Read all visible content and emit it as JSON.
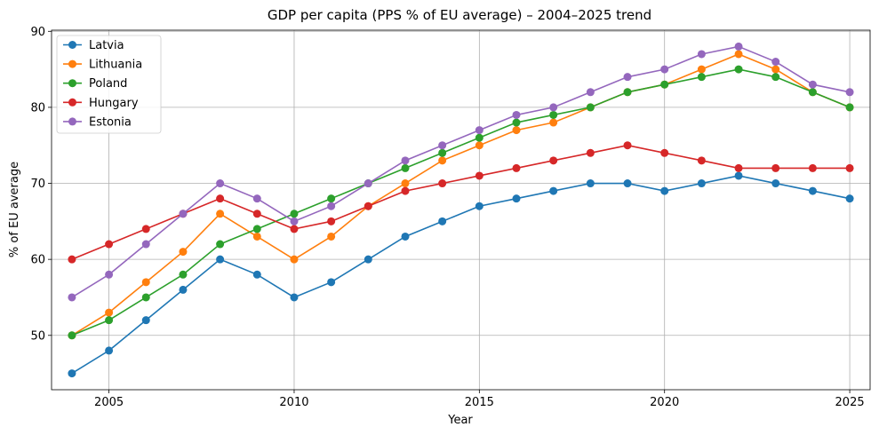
{
  "chart_data": {
    "type": "line",
    "title": "GDP per capita (PPS % of EU average) – 2004–2025 trend",
    "xlabel": "Year",
    "ylabel": "% of EU average",
    "x": [
      2004,
      2005,
      2006,
      2007,
      2008,
      2009,
      2010,
      2011,
      2012,
      2013,
      2014,
      2015,
      2016,
      2017,
      2018,
      2019,
      2020,
      2021,
      2022,
      2023,
      2024,
      2025
    ],
    "xlim": [
      2003.45,
      2025.55
    ],
    "ylim": [
      42.85,
      90.15
    ],
    "xticks": [
      2005,
      2010,
      2015,
      2020,
      2025
    ],
    "yticks": [
      50,
      60,
      70,
      80,
      90
    ],
    "grid": true,
    "legend_position": "top-left",
    "series": [
      {
        "name": "Latvia",
        "color": "#1f77b4",
        "values": [
          45,
          48,
          52,
          56,
          60,
          58,
          55,
          57,
          60,
          63,
          65,
          67,
          68,
          69,
          70,
          70,
          69,
          70,
          71,
          70,
          69,
          68
        ]
      },
      {
        "name": "Lithuania",
        "color": "#ff7f0e",
        "values": [
          50,
          53,
          57,
          61,
          66,
          63,
          60,
          63,
          67,
          70,
          73,
          75,
          77,
          78,
          80,
          82,
          83,
          85,
          87,
          85,
          82,
          80
        ]
      },
      {
        "name": "Poland",
        "color": "#2ca02c",
        "values": [
          50,
          52,
          55,
          58,
          62,
          64,
          66,
          68,
          70,
          72,
          74,
          76,
          78,
          79,
          80,
          82,
          83,
          84,
          85,
          84,
          82,
          80
        ]
      },
      {
        "name": "Hungary",
        "color": "#d62728",
        "values": [
          60,
          62,
          64,
          66,
          68,
          66,
          64,
          65,
          67,
          69,
          70,
          71,
          72,
          73,
          74,
          75,
          74,
          73,
          72,
          72,
          72,
          72
        ]
      },
      {
        "name": "Estonia",
        "color": "#9467bd",
        "values": [
          55,
          58,
          62,
          66,
          70,
          68,
          65,
          67,
          70,
          73,
          75,
          77,
          79,
          80,
          82,
          84,
          85,
          87,
          88,
          86,
          83,
          82
        ]
      }
    ]
  }
}
